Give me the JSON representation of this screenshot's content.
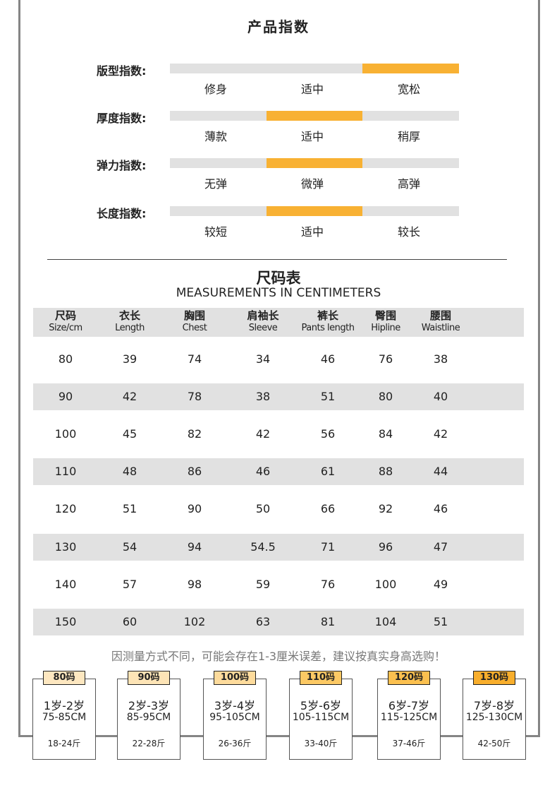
{
  "index_section": {
    "title": "产品指数",
    "rows": [
      {
        "label": "版型指数:",
        "options": [
          "修身",
          "适中",
          "宽松"
        ],
        "selected": 2
      },
      {
        "label": "厚度指数:",
        "options": [
          "薄款",
          "适中",
          "稍厚"
        ],
        "selected": 1
      },
      {
        "label": "弹力指数:",
        "options": [
          "无弹",
          "微弹",
          "高弹"
        ],
        "selected": 1
      },
      {
        "label": "长度指数:",
        "options": [
          "较短",
          "适中",
          "较长"
        ],
        "selected": 1
      }
    ],
    "active_color": "#f8b133",
    "inactive_color": "#e1e1e1"
  },
  "size_chart": {
    "title": "尺码表",
    "subtitle": "MEASUREMENTS IN CENTIMETERS",
    "headers": [
      {
        "cn": "尺码",
        "en": "Size/cm"
      },
      {
        "cn": "衣长",
        "en": "Length"
      },
      {
        "cn": "胸围",
        "en": "Chest"
      },
      {
        "cn": "肩袖长",
        "en": "Sleeve"
      },
      {
        "cn": "裤长",
        "en": "Pants length"
      },
      {
        "cn": "臀围",
        "en": "Hipline"
      },
      {
        "cn": "腰围",
        "en": "Waistline"
      }
    ],
    "rows": [
      [
        "80",
        "39",
        "74",
        "34",
        "46",
        "76",
        "38"
      ],
      [
        "90",
        "42",
        "78",
        "38",
        "51",
        "80",
        "40"
      ],
      [
        "100",
        "45",
        "82",
        "42",
        "56",
        "84",
        "42"
      ],
      [
        "110",
        "48",
        "86",
        "46",
        "61",
        "88",
        "44"
      ],
      [
        "120",
        "51",
        "90",
        "50",
        "66",
        "92",
        "46"
      ],
      [
        "130",
        "54",
        "94",
        "54.5",
        "71",
        "96",
        "47"
      ],
      [
        "140",
        "57",
        "98",
        "59",
        "76",
        "100",
        "49"
      ],
      [
        "150",
        "60",
        "102",
        "63",
        "81",
        "104",
        "51"
      ]
    ],
    "note": "因测量方式不同，可能会存在1-3厘米误差，建议按真实身高选购！"
  },
  "size_cards": [
    {
      "tag": "80码",
      "age": "1岁-2岁",
      "height": "75-85CM",
      "weight": "18-24斤",
      "color": "#fde7c0"
    },
    {
      "tag": "90码",
      "age": "2岁-3岁",
      "height": "85-95CM",
      "weight": "22-28斤",
      "color": "#fde4b6"
    },
    {
      "tag": "100码",
      "age": "3岁-4岁",
      "height": "95-105CM",
      "weight": "26-36斤",
      "color": "#fddb9c"
    },
    {
      "tag": "110码",
      "age": "5岁-6岁",
      "height": "105-115CM",
      "weight": "33-40斤",
      "color": "#fcc964"
    },
    {
      "tag": "120码",
      "age": "6岁-7岁",
      "height": "115-125CM",
      "weight": "37-46斤",
      "color": "#fbc04f"
    },
    {
      "tag": "130码",
      "age": "7岁-8岁",
      "height": "125-130CM",
      "weight": "42-50斤",
      "color": "#f8ae2c"
    }
  ]
}
